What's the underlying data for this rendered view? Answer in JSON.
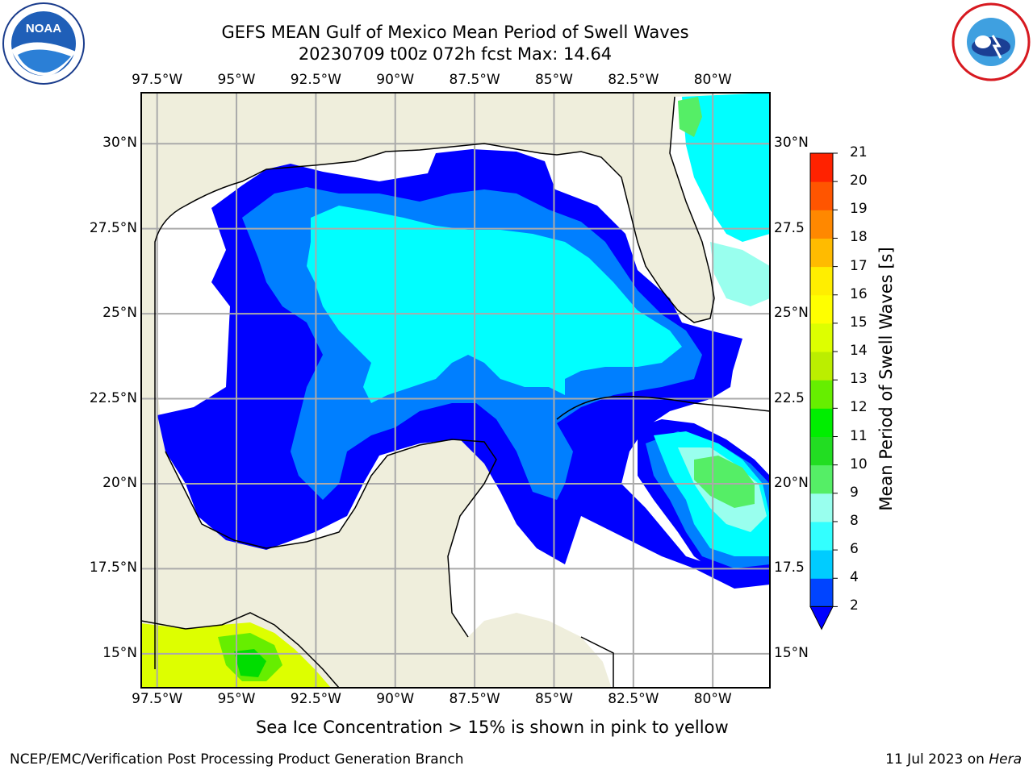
{
  "title": {
    "line1": "GEFS MEAN Gulf of Mexico Mean Period of Swell Waves",
    "line2": "20230709 t00z 072h fcst   Max: 14.64"
  },
  "logos": {
    "left": "noaa-logo",
    "left_text": "NOAA",
    "right": "nws-logo",
    "right_text": "NATIONAL WEATHER SERVICE"
  },
  "map": {
    "lon_labels": [
      "97.5°W",
      "95°W",
      "92.5°W",
      "90°W",
      "87.5°W",
      "85°W",
      "82.5°W",
      "80°W"
    ],
    "lat_labels_left": [
      "30°N",
      "27.5°N",
      "25°N",
      "22.5°N",
      "20°N",
      "17.5°N",
      "15°N"
    ],
    "lat_labels_right": [
      "30°N",
      "27.5",
      "25°N",
      "22.5",
      "20°N",
      "17.5",
      "15°N"
    ],
    "lon_range": [
      -98,
      -78.2
    ],
    "lat_range": [
      14,
      31.5
    ],
    "land_color": "#efeedc",
    "ocean_nodata_color": "#ffffff",
    "grid": true
  },
  "colorbar": {
    "title": "Mean Period of Swell Waves [s]",
    "levels": [
      "2",
      "4",
      "6",
      "8",
      "9",
      "10",
      "11",
      "12",
      "13",
      "14",
      "15",
      "16",
      "17",
      "18",
      "19",
      "20",
      "21"
    ],
    "colors": [
      "#0044ff",
      "#00ccff",
      "#33ffff",
      "#99ffee",
      "#55ee66",
      "#22dd22",
      "#00ee00",
      "#66ee00",
      "#bbee00",
      "#ddff00",
      "#ffff00",
      "#ffee00",
      "#ffbb00",
      "#ff8800",
      "#ff5500",
      "#ff2200"
    ],
    "under_color": "#0000ff"
  },
  "footer": {
    "note": "Sea Ice Concentration > 15% is shown in pink to yellow",
    "left": "NCEP/EMC/Verification Post Processing Product Generation Branch",
    "right_date": "11 Jul 2023 on ",
    "right_host": "Hera"
  }
}
